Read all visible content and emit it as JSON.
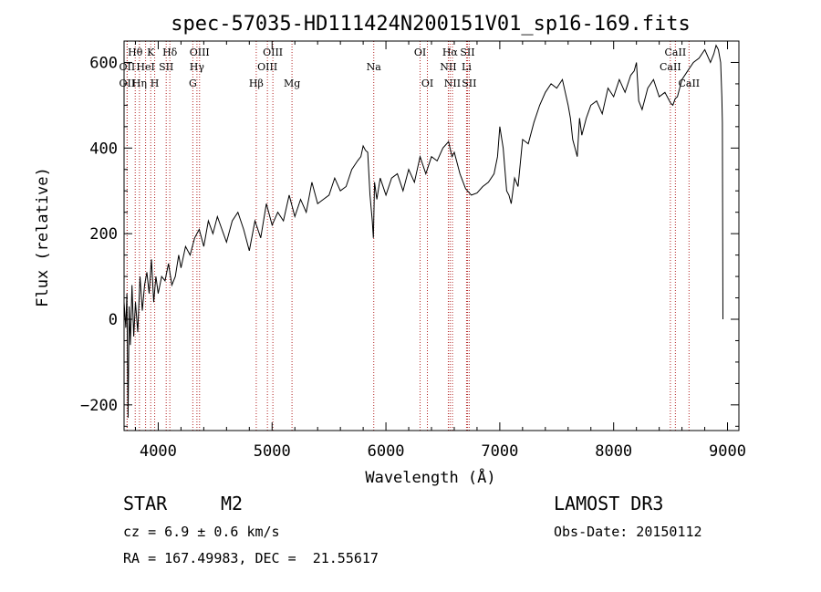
{
  "chart_data": {
    "type": "line",
    "title": "spec-57035-HD111424N200151V01_sp16-169.fits",
    "xlabel": "Wavelength (Å)",
    "ylabel": "Flux (relative)",
    "xlim": [
      3700,
      9100
    ],
    "ylim": [
      -260,
      650
    ],
    "x_ticks": [
      4000,
      5000,
      6000,
      7000,
      8000,
      9000
    ],
    "x_tick_labels": [
      "4000",
      "5000",
      "6000",
      "7000",
      "8000",
      "9000"
    ],
    "y_ticks": [
      -200,
      0,
      200,
      400,
      600
    ],
    "y_tick_labels": [
      "−200",
      "0",
      "200",
      "400",
      "600"
    ],
    "series": [
      {
        "name": "flux",
        "x": [
          3700,
          3715,
          3725,
          3735,
          3745,
          3755,
          3770,
          3785,
          3800,
          3820,
          3840,
          3860,
          3880,
          3900,
          3920,
          3940,
          3960,
          3980,
          4000,
          4030,
          4060,
          4090,
          4120,
          4150,
          4180,
          4200,
          4240,
          4280,
          4320,
          4360,
          4400,
          4440,
          4480,
          4520,
          4560,
          4600,
          4650,
          4700,
          4750,
          4800,
          4850,
          4900,
          4950,
          5000,
          5050,
          5100,
          5150,
          5200,
          5250,
          5300,
          5350,
          5400,
          5450,
          5500,
          5550,
          5600,
          5650,
          5700,
          5750,
          5780,
          5800,
          5820,
          5840,
          5860,
          5880,
          5890,
          5900,
          5920,
          5950,
          6000,
          6050,
          6100,
          6150,
          6200,
          6250,
          6300,
          6350,
          6400,
          6450,
          6500,
          6550,
          6580,
          6600,
          6620,
          6650,
          6700,
          6750,
          6800,
          6850,
          6900,
          6950,
          6980,
          7000,
          7030,
          7060,
          7080,
          7100,
          7130,
          7160,
          7200,
          7250,
          7300,
          7350,
          7400,
          7450,
          7500,
          7550,
          7600,
          7620,
          7640,
          7660,
          7680,
          7700,
          7720,
          7760,
          7800,
          7850,
          7900,
          7950,
          8000,
          8050,
          8100,
          8150,
          8180,
          8200,
          8220,
          8250,
          8300,
          8350,
          8400,
          8450,
          8500,
          8520,
          8540,
          8560,
          8580,
          8600,
          8650,
          8700,
          8750,
          8800,
          8850,
          8880,
          8900,
          8920,
          8940,
          8950,
          8955,
          8960
        ],
        "y": [
          40,
          -20,
          60,
          -230,
          30,
          -60,
          80,
          -40,
          40,
          -30,
          100,
          20,
          80,
          110,
          60,
          140,
          40,
          100,
          60,
          100,
          90,
          130,
          80,
          100,
          150,
          120,
          170,
          150,
          190,
          210,
          170,
          230,
          200,
          240,
          210,
          180,
          230,
          250,
          210,
          160,
          230,
          190,
          270,
          220,
          250,
          230,
          290,
          240,
          280,
          250,
          320,
          270,
          280,
          290,
          330,
          300,
          310,
          350,
          370,
          380,
          405,
          395,
          390,
          290,
          230,
          190,
          320,
          280,
          330,
          290,
          330,
          340,
          300,
          350,
          320,
          380,
          340,
          380,
          370,
          400,
          415,
          380,
          390,
          370,
          340,
          305,
          290,
          295,
          310,
          320,
          340,
          380,
          450,
          400,
          300,
          290,
          270,
          330,
          310,
          420,
          410,
          460,
          500,
          530,
          550,
          540,
          560,
          500,
          470,
          420,
          400,
          380,
          470,
          430,
          470,
          500,
          510,
          480,
          540,
          520,
          560,
          530,
          570,
          580,
          600,
          510,
          490,
          540,
          560,
          520,
          530,
          505,
          500,
          515,
          520,
          540,
          560,
          580,
          600,
          610,
          630,
          600,
          620,
          640,
          630,
          600,
          520,
          460,
          0
        ]
      }
    ],
    "emission_lines": [
      {
        "label": "Hθ",
        "x": 3798,
        "row": 1
      },
      {
        "label": "OII",
        "x": 3727,
        "row": 2
      },
      {
        "label": "OII",
        "x": 3727,
        "row": 3
      },
      {
        "label": "Hη",
        "x": 3835,
        "row": 3
      },
      {
        "label": "K",
        "x": 3934,
        "row": 1
      },
      {
        "label": "HeI",
        "x": 3889,
        "row": 2
      },
      {
        "label": "H",
        "x": 3969,
        "row": 3
      },
      {
        "label": "SII",
        "x": 4070,
        "row": 2
      },
      {
        "label": "Hδ",
        "x": 4102,
        "row": 1
      },
      {
        "label": "OIII",
        "x": 4363,
        "row": 1
      },
      {
        "label": "Hγ",
        "x": 4340,
        "row": 2
      },
      {
        "label": "G",
        "x": 4304,
        "row": 3
      },
      {
        "label": "Hβ",
        "x": 4861,
        "row": 3
      },
      {
        "label": "OIII",
        "x": 5007,
        "row": 1
      },
      {
        "label": "OIII",
        "x": 4959,
        "row": 2
      },
      {
        "label": "Mg",
        "x": 5175,
        "row": 3
      },
      {
        "label": "Na",
        "x": 5893,
        "row": 2
      },
      {
        "label": "OI",
        "x": 6300,
        "row": 1
      },
      {
        "label": "OI",
        "x": 6364,
        "row": 3
      },
      {
        "label": "Hα",
        "x": 6563,
        "row": 1
      },
      {
        "label": "NII",
        "x": 6548,
        "row": 2
      },
      {
        "label": "NII",
        "x": 6584,
        "row": 3
      },
      {
        "label": "SII",
        "x": 6716,
        "row": 1
      },
      {
        "label": "Li",
        "x": 6708,
        "row": 2
      },
      {
        "label": "SII",
        "x": 6731,
        "row": 3
      },
      {
        "label": "CaII",
        "x": 8542,
        "row": 1
      },
      {
        "label": "CaII",
        "x": 8498,
        "row": 2
      },
      {
        "label": "CaII",
        "x": 8662,
        "row": 3
      }
    ],
    "line_color": "#000000",
    "marker_color": "#b22222"
  },
  "info": {
    "object_class": "STAR",
    "subclass": "M2",
    "survey": "LAMOST DR3",
    "redshift": "cz = 6.9 ± 0.6 km/s",
    "obs_date": "Obs-Date: 20150112",
    "coords": "RA = 167.49983, DEC =  21.55617"
  }
}
